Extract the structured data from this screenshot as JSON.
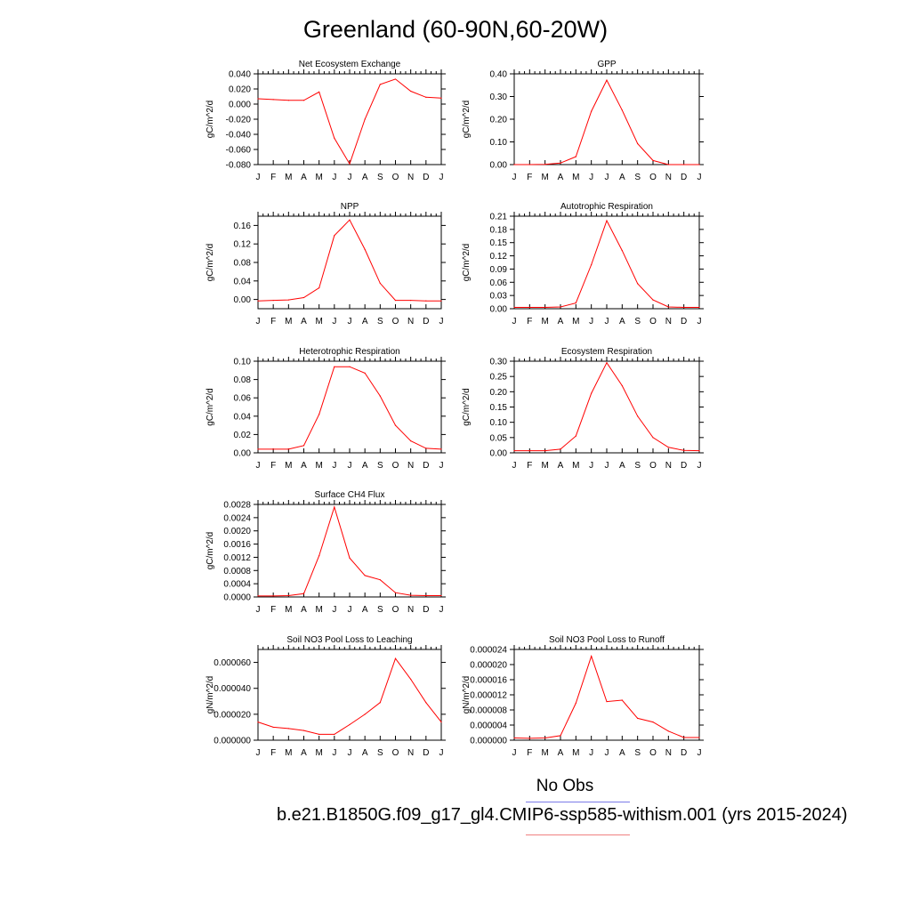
{
  "page": {
    "title": "Greenland (60-90N,60-20W)"
  },
  "legend": {
    "items": [
      {
        "label": "No Obs",
        "color": "#7b7be8"
      },
      {
        "label": "b.e21.B1850G.f09_g17_gl4.CMIP6-ssp585-withism.001 (yrs 2015-2024)",
        "color": "#f08080"
      }
    ]
  },
  "colors": {
    "series": "#ff0000",
    "axis": "#000000"
  },
  "chart_data": [
    {
      "type": "line",
      "title": "Net Ecosystem Exchange",
      "ylabel": "gC/m^2/d",
      "xlabel": "",
      "categories": [
        "J",
        "F",
        "M",
        "A",
        "M",
        "J",
        "J",
        "A",
        "S",
        "O",
        "N",
        "D",
        "J"
      ],
      "ylim": [
        -0.08,
        0.04
      ],
      "yticks": [
        0.04,
        0.02,
        0.0,
        -0.02,
        -0.04,
        -0.06,
        -0.08
      ],
      "ytick_labels": [
        "0.040",
        "0.020",
        "0.000",
        "-0.020",
        "-0.040",
        "-0.060",
        "-0.080"
      ],
      "series": [
        {
          "values": [
            0.007,
            0.006,
            0.005,
            0.005,
            0.016,
            -0.045,
            -0.079,
            -0.02,
            0.026,
            0.033,
            0.017,
            0.009,
            0.008
          ]
        }
      ]
    },
    {
      "type": "line",
      "title": "GPP",
      "ylabel": "gC/m^2/d",
      "xlabel": "",
      "categories": [
        "J",
        "F",
        "M",
        "A",
        "M",
        "J",
        "J",
        "A",
        "S",
        "O",
        "N",
        "D",
        "J"
      ],
      "ylim": [
        0,
        0.4
      ],
      "yticks": [
        0.4,
        0.3,
        0.2,
        0.1,
        0.0
      ],
      "ytick_labels": [
        "0.40",
        "0.30",
        "0.20",
        "0.10",
        "0.00"
      ],
      "series": [
        {
          "values": [
            0.0,
            0.0,
            0.001,
            0.007,
            0.035,
            0.235,
            0.372,
            0.24,
            0.092,
            0.018,
            0.0,
            0.0,
            0.0
          ]
        }
      ]
    },
    {
      "type": "line",
      "title": "NPP",
      "ylabel": "gC/m^2/d",
      "xlabel": "",
      "categories": [
        "J",
        "F",
        "M",
        "A",
        "M",
        "J",
        "J",
        "A",
        "S",
        "O",
        "N",
        "D",
        "J"
      ],
      "ylim": [
        -0.02,
        0.18
      ],
      "yticks": [
        0.16,
        0.12,
        0.08,
        0.04,
        0.0
      ],
      "ytick_labels": [
        "0.16",
        "0.12",
        "0.08",
        "0.04",
        "0.00"
      ],
      "series": [
        {
          "values": [
            -0.003,
            -0.002,
            -0.001,
            0.004,
            0.025,
            0.138,
            0.172,
            0.108,
            0.035,
            -0.002,
            -0.002,
            -0.003,
            -0.003
          ]
        }
      ]
    },
    {
      "type": "line",
      "title": "Autotrophic Respiration",
      "ylabel": "gC/m^2/d",
      "xlabel": "",
      "categories": [
        "J",
        "F",
        "M",
        "A",
        "M",
        "J",
        "J",
        "A",
        "S",
        "O",
        "N",
        "D",
        "J"
      ],
      "ylim": [
        0,
        0.21
      ],
      "yticks": [
        0.21,
        0.18,
        0.15,
        0.12,
        0.09,
        0.06,
        0.03,
        0.0
      ],
      "ytick_labels": [
        "0.21",
        "0.18",
        "0.15",
        "0.12",
        "0.09",
        "0.06",
        "0.03",
        "0.00"
      ],
      "series": [
        {
          "values": [
            0.003,
            0.003,
            0.003,
            0.004,
            0.013,
            0.1,
            0.2,
            0.132,
            0.057,
            0.02,
            0.004,
            0.003,
            0.003
          ]
        }
      ]
    },
    {
      "type": "line",
      "title": "Heterotrophic Respiration",
      "ylabel": "gC/m^2/d",
      "xlabel": "",
      "categories": [
        "J",
        "F",
        "M",
        "A",
        "M",
        "J",
        "J",
        "A",
        "S",
        "O",
        "N",
        "D",
        "J"
      ],
      "ylim": [
        0,
        0.1
      ],
      "yticks": [
        0.1,
        0.08,
        0.06,
        0.04,
        0.02,
        0.0
      ],
      "ytick_labels": [
        "0.10",
        "0.08",
        "0.06",
        "0.04",
        "0.02",
        "0.00"
      ],
      "series": [
        {
          "values": [
            0.004,
            0.004,
            0.004,
            0.008,
            0.042,
            0.094,
            0.094,
            0.087,
            0.062,
            0.03,
            0.013,
            0.005,
            0.004
          ]
        }
      ]
    },
    {
      "type": "line",
      "title": "Ecosystem Respiration",
      "ylabel": "gC/m^2/d",
      "xlabel": "",
      "categories": [
        "J",
        "F",
        "M",
        "A",
        "M",
        "J",
        "J",
        "A",
        "S",
        "O",
        "N",
        "D",
        "J"
      ],
      "ylim": [
        0,
        0.3
      ],
      "yticks": [
        0.3,
        0.25,
        0.2,
        0.15,
        0.1,
        0.05,
        0.0
      ],
      "ytick_labels": [
        "0.30",
        "0.25",
        "0.20",
        "0.15",
        "0.10",
        "0.05",
        "0.00"
      ],
      "series": [
        {
          "values": [
            0.007,
            0.007,
            0.007,
            0.012,
            0.055,
            0.195,
            0.295,
            0.22,
            0.12,
            0.05,
            0.018,
            0.008,
            0.007
          ]
        }
      ]
    },
    {
      "type": "line",
      "title": "Surface CH4 Flux",
      "ylabel": "gC/m^2/d",
      "xlabel": "",
      "categories": [
        "J",
        "F",
        "M",
        "A",
        "M",
        "J",
        "J",
        "A",
        "S",
        "O",
        "N",
        "D",
        "J"
      ],
      "ylim": [
        0,
        0.0028
      ],
      "yticks": [
        0.0028,
        0.0024,
        0.002,
        0.0016,
        0.0012,
        0.0008,
        0.0004,
        0.0
      ],
      "ytick_labels": [
        "0.0028",
        "0.0024",
        "0.0020",
        "0.0016",
        "0.0012",
        "0.0008",
        "0.0004",
        "0.0000"
      ],
      "series": [
        {
          "values": [
            3e-05,
            3e-05,
            4e-05,
            0.0001,
            0.00125,
            0.00272,
            0.00118,
            0.00065,
            0.00052,
            0.00013,
            5e-05,
            4e-05,
            4e-05
          ]
        }
      ]
    },
    {
      "type": "line",
      "title": "Soil NO3 Pool Loss to Leaching",
      "ylabel": "gN/m^2/d",
      "xlabel": "",
      "categories": [
        "J",
        "F",
        "M",
        "A",
        "M",
        "J",
        "J",
        "A",
        "S",
        "O",
        "N",
        "D",
        "J"
      ],
      "ylim": [
        0,
        7e-05
      ],
      "yticks": [
        6e-05,
        4e-05,
        2e-05,
        0.0
      ],
      "ytick_labels": [
        "0.000060",
        "0.000040",
        "0.000020",
        "0.000000"
      ],
      "series": [
        {
          "values": [
            1.4e-05,
            1e-05,
            9e-06,
            7.5e-06,
            4.5e-06,
            4.5e-06,
            1.2e-05,
            2e-05,
            2.9e-05,
            6.3e-05,
            4.7e-05,
            2.9e-05,
            1.4e-05
          ]
        }
      ]
    },
    {
      "type": "line",
      "title": "Soil NO3 Pool Loss to Runoff",
      "ylabel": "gN/m^2/d",
      "xlabel": "",
      "categories": [
        "J",
        "F",
        "M",
        "A",
        "M",
        "J",
        "J",
        "A",
        "S",
        "O",
        "N",
        "D",
        "J"
      ],
      "ylim": [
        0,
        2.4e-05
      ],
      "yticks": [
        2.4e-05,
        2e-05,
        1.6e-05,
        1.2e-05,
        8e-06,
        4e-06,
        0.0
      ],
      "ytick_labels": [
        "0.000024",
        "0.000020",
        "0.000016",
        "0.000012",
        "0.000008",
        "0.000004",
        "0.000000"
      ],
      "series": [
        {
          "values": [
            6e-07,
            5e-07,
            6e-07,
            1.2e-06,
            9.8e-06,
            2.22e-05,
            1.02e-05,
            1.06e-05,
            5.8e-06,
            4.8e-06,
            2.4e-06,
            7e-07,
            7e-07
          ]
        }
      ]
    }
  ]
}
